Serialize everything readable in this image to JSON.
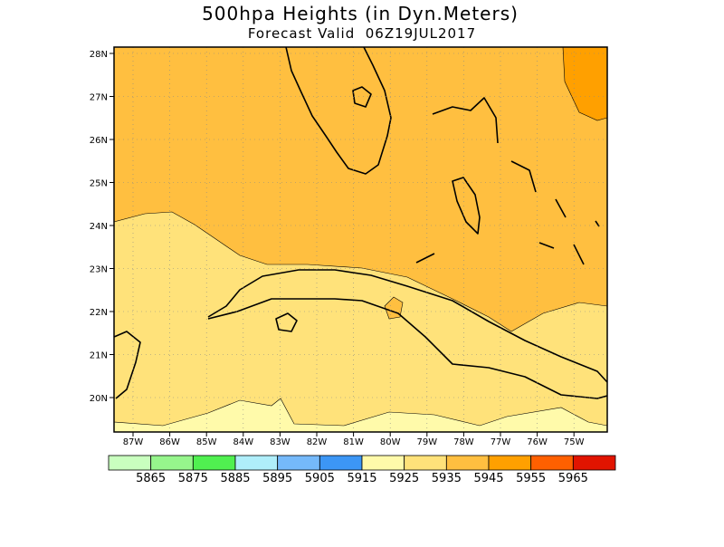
{
  "header": {
    "title": "500hpa Heights (in Dyn.Meters)",
    "subtitle": "Forecast Valid  06Z19JUL2017"
  },
  "map": {
    "lat_labels": [
      "28N",
      "27N",
      "26N",
      "25N",
      "24N",
      "23N",
      "22N",
      "21N",
      "20N"
    ],
    "lon_labels": [
      "87W",
      "86W",
      "85W",
      "84W",
      "83W",
      "82W",
      "81W",
      "80W",
      "79W",
      "78W",
      "77W",
      "76W",
      "75W"
    ]
  },
  "colorbar": {
    "colors": [
      "#c9ffbf",
      "#96f58c",
      "#50f050",
      "#afeefa",
      "#75b9fa",
      "#3c96f5",
      "#fffaaa",
      "#ffe27a",
      "#ffbf40",
      "#ffa000",
      "#ff6000",
      "#e11400"
    ],
    "labels": [
      "5865",
      "5875",
      "5885",
      "5895",
      "5905",
      "5915",
      "5925",
      "5935",
      "5945",
      "5955",
      "5965"
    ]
  }
}
